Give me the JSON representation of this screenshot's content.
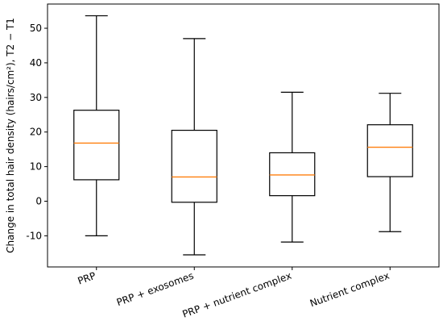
{
  "chart_data": {
    "type": "box",
    "title": "",
    "xlabel": "",
    "ylabel": "Change in total hair density (hairs/cm²), T2 − T1",
    "ylim": [
      -19,
      57
    ],
    "yticks": [
      -10,
      0,
      10,
      20,
      30,
      40,
      50
    ],
    "grid": false,
    "box_color": "#000000",
    "median_color": "#ff7f0e",
    "categories": [
      "PRP",
      "PRP + exosomes",
      "PRP + nutrient complex",
      "Nutrient complex"
    ],
    "boxes": [
      {
        "category": "PRP",
        "whislo": -10.0,
        "q1": 6.2,
        "median": 16.8,
        "q3": 26.3,
        "whishi": 53.6
      },
      {
        "category": "PRP + exosomes",
        "whislo": -15.5,
        "q1": -0.3,
        "median": 7.0,
        "q3": 20.5,
        "whishi": 47.0
      },
      {
        "category": "PRP + nutrient complex",
        "whislo": -11.8,
        "q1": 1.6,
        "median": 7.6,
        "q3": 14.0,
        "whishi": 31.5
      },
      {
        "category": "Nutrient complex",
        "whislo": -8.8,
        "q1": 7.1,
        "median": 15.6,
        "q3": 22.1,
        "whishi": 31.2
      }
    ]
  }
}
